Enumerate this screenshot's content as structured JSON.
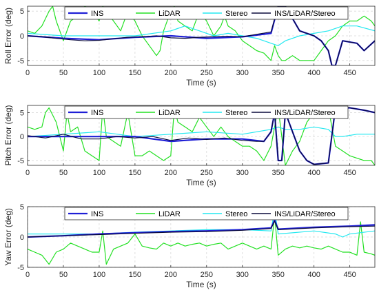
{
  "colors": {
    "INS": "#1f1fd6",
    "LiDAR": "#22e022",
    "Stereo": "#22e8f0",
    "INS/LiDAR/Stereo": "#0a0a3c",
    "grid": "#d9d9d9",
    "axis": "#262626"
  },
  "chart_data": [
    {
      "type": "line",
      "xlabel": "Time (s)",
      "ylabel": "Roll Error (deg)",
      "xlim": [
        0,
        485
      ],
      "ylim": [
        -6,
        6
      ],
      "xticks": [
        0,
        50,
        100,
        150,
        200,
        250,
        300,
        350,
        400,
        450
      ],
      "yticks": [
        -5,
        0,
        5
      ],
      "grid": true,
      "legend": {
        "placement": "top",
        "orientation": "horizontal",
        "entries": [
          "INS",
          "LiDAR",
          "Stereo",
          "INS/LiDAR/Stereo"
        ]
      },
      "series": [
        {
          "name": "INS",
          "x": [
            0,
            50,
            100,
            150,
            200,
            250,
            300,
            340,
            350,
            360,
            380,
            400,
            410,
            420,
            425,
            430,
            440,
            460,
            470,
            485
          ],
          "y": [
            0,
            -0.5,
            -0.8,
            -0.3,
            0,
            -0.5,
            -0.2,
            0.5,
            6,
            6,
            1,
            0,
            -1,
            -3,
            -6,
            -6,
            -1,
            -1.5,
            -3,
            -1
          ]
        },
        {
          "name": "LiDAR",
          "x": [
            0,
            10,
            20,
            30,
            35,
            40,
            50,
            55,
            60,
            70,
            80,
            90,
            100,
            105,
            110,
            120,
            130,
            140,
            150,
            160,
            170,
            180,
            185,
            190,
            200,
            205,
            210,
            220,
            230,
            240,
            250,
            260,
            270,
            275,
            280,
            290,
            300,
            310,
            320,
            330,
            340,
            345,
            350,
            355,
            360,
            370,
            380,
            390,
            400,
            410,
            420,
            430,
            440,
            450,
            460,
            470,
            480,
            485
          ],
          "y": [
            1,
            0.5,
            2,
            5,
            6,
            3,
            -1,
            1,
            3,
            4,
            6,
            5,
            3,
            6,
            5,
            3,
            1,
            5,
            3,
            0,
            -2,
            -4,
            -3,
            1,
            5,
            6,
            3,
            2,
            1,
            5,
            3,
            0,
            2,
            4,
            2,
            1,
            -1,
            -2,
            -3,
            -3.5,
            -5,
            -2,
            -4,
            -5,
            -5,
            -4,
            -5,
            -5,
            -5,
            -3,
            -1,
            0,
            2,
            3,
            3,
            4,
            3,
            2
          ]
        },
        {
          "name": "Stereo",
          "x": [
            0,
            50,
            100,
            150,
            200,
            220,
            240,
            260,
            280,
            300,
            320,
            340,
            350,
            360,
            380,
            400,
            420,
            440,
            460,
            485
          ],
          "y": [
            0.5,
            0,
            0,
            0,
            1,
            2,
            1,
            0,
            0.5,
            0,
            -0.5,
            -1.5,
            -2,
            -1,
            0,
            0.5,
            1,
            2,
            2,
            1
          ]
        },
        {
          "name": "INS/LiDAR/Stereo",
          "x": [
            0,
            20,
            40,
            60,
            80,
            100,
            120,
            140,
            160,
            180,
            200,
            220,
            240,
            260,
            280,
            300,
            320,
            340,
            350,
            360,
            380,
            400,
            410,
            420,
            425,
            430,
            440,
            460,
            470,
            485
          ],
          "y": [
            0,
            -0.2,
            -0.5,
            -0.8,
            -1,
            -0.9,
            -0.6,
            -0.3,
            -0.2,
            0,
            -0.4,
            -0.5,
            -0.3,
            -0.2,
            -0.1,
            -0.2,
            0.3,
            0.8,
            6,
            6,
            1,
            0,
            -1,
            -3,
            -6,
            -6,
            -1,
            -1.5,
            -3,
            -1
          ]
        }
      ]
    },
    {
      "type": "line",
      "xlabel": "Time (s)",
      "ylabel": "Pitch Error (deg)",
      "xlim": [
        0,
        485
      ],
      "ylim": [
        -6,
        6.5
      ],
      "xticks": [
        0,
        50,
        100,
        150,
        200,
        250,
        300,
        350,
        400,
        450
      ],
      "yticks": [
        -5,
        0,
        5
      ],
      "grid": true,
      "legend": {
        "placement": "top",
        "orientation": "horizontal",
        "entries": [
          "INS",
          "LiDAR",
          "Stereo",
          "INS/LiDAR/Stereo"
        ]
      },
      "series": [
        {
          "name": "INS",
          "x": [
            0,
            50,
            100,
            150,
            200,
            250,
            300,
            330,
            340,
            345,
            350,
            355,
            360,
            370,
            380,
            390,
            400,
            420,
            430,
            440,
            450,
            470,
            485
          ],
          "y": [
            0,
            0,
            0,
            0,
            -1,
            -0.5,
            -0.5,
            -1,
            1,
            5,
            -5,
            -5,
            5,
            1,
            -3,
            -5,
            -5.8,
            -5.5,
            6,
            6,
            6,
            5.5,
            5
          ]
        },
        {
          "name": "LiDAR",
          "x": [
            0,
            10,
            20,
            25,
            30,
            40,
            50,
            55,
            60,
            70,
            80,
            90,
            100,
            105,
            110,
            120,
            130,
            140,
            150,
            160,
            170,
            180,
            190,
            200,
            205,
            210,
            220,
            230,
            240,
            250,
            260,
            270,
            280,
            290,
            300,
            310,
            320,
            330,
            340,
            350,
            360,
            370,
            380,
            390,
            400,
            410,
            420,
            430,
            440,
            450,
            460,
            470,
            480,
            485
          ],
          "y": [
            2,
            1.5,
            2,
            5,
            6,
            3,
            -3,
            5,
            1,
            2,
            -3,
            -4,
            -5,
            6,
            0,
            -1,
            -2,
            5,
            -4,
            -4,
            -3,
            -4,
            -5,
            -4,
            6,
            3,
            2,
            1,
            4,
            2,
            0,
            2,
            0,
            -1,
            -2,
            -2,
            -3,
            -5,
            -2,
            6,
            -6,
            -3,
            -1,
            3,
            5,
            6,
            6,
            -2,
            -3,
            -4,
            -4.5,
            -5,
            -5,
            -6
          ]
        },
        {
          "name": "Stereo",
          "x": [
            0,
            50,
            100,
            150,
            200,
            250,
            300,
            320,
            340,
            350,
            360,
            380,
            400,
            420,
            430,
            440,
            460,
            485
          ],
          "y": [
            0,
            0.5,
            1,
            0,
            0.5,
            1,
            0.5,
            1,
            1.5,
            2,
            1.5,
            1.5,
            2,
            1.5,
            0,
            0,
            0.5,
            0.5
          ]
        },
        {
          "name": "INS/LiDAR/Stereo",
          "x": [
            0,
            25,
            50,
            75,
            100,
            125,
            150,
            175,
            200,
            225,
            250,
            275,
            300,
            320,
            330,
            340,
            345,
            350,
            355,
            360,
            370,
            380,
            390,
            400,
            420,
            430,
            440,
            450,
            470,
            485
          ],
          "y": [
            0.2,
            -0.3,
            0.5,
            -0.5,
            -0.5,
            0,
            -0.3,
            0,
            -0.8,
            -0.3,
            -0.6,
            -0.3,
            -0.8,
            -1,
            -1,
            1,
            5,
            -5,
            -5,
            5,
            1,
            -3,
            -5,
            -5.8,
            -5.5,
            6,
            6,
            6,
            5.5,
            5
          ]
        }
      ]
    },
    {
      "type": "line",
      "xlabel": "Time (s)",
      "ylabel": "Yaw Error (deg)",
      "xlim": [
        0,
        485
      ],
      "ylim": [
        -5,
        5
      ],
      "xticks": [
        0,
        50,
        100,
        150,
        200,
        250,
        300,
        350,
        400,
        450
      ],
      "yticks": [
        -5,
        0,
        5
      ],
      "grid": true,
      "legend": {
        "placement": "top",
        "orientation": "horizontal",
        "entries": [
          "INS",
          "LiDAR",
          "Stereo",
          "INS/LiDAR/Stereo"
        ]
      },
      "series": [
        {
          "name": "INS",
          "x": [
            0,
            50,
            100,
            150,
            200,
            250,
            300,
            340,
            345,
            350,
            400,
            450,
            485
          ],
          "y": [
            0,
            0.2,
            0.5,
            0.7,
            0.9,
            1,
            1.2,
            1.5,
            2.8,
            1.3,
            1.6,
            1.8,
            2
          ]
        },
        {
          "name": "LiDAR",
          "x": [
            0,
            10,
            20,
            30,
            40,
            50,
            60,
            70,
            80,
            90,
            100,
            105,
            110,
            120,
            130,
            140,
            150,
            160,
            170,
            180,
            190,
            200,
            210,
            220,
            230,
            240,
            250,
            260,
            270,
            280,
            290,
            300,
            310,
            320,
            330,
            340,
            345,
            350,
            360,
            370,
            380,
            390,
            400,
            410,
            420,
            430,
            440,
            450,
            460,
            465,
            470,
            480,
            485
          ],
          "y": [
            -2,
            -2.5,
            -3,
            -4.5,
            -2.5,
            -2,
            -1,
            -1.5,
            -2,
            -2.5,
            -2.5,
            1,
            -4.5,
            -2,
            -1.5,
            -1,
            0.5,
            -1.5,
            -1.8,
            -2,
            -1,
            -1.5,
            -1,
            -1.5,
            -1.2,
            -1,
            -1.5,
            -1.2,
            -1,
            -2,
            -1.5,
            -1,
            -1.5,
            -2,
            -1.5,
            -2,
            3.5,
            -3,
            -2,
            -1.5,
            -1.8,
            -1.5,
            -1.8,
            -2,
            -1.5,
            -2,
            -2.5,
            -2.5,
            -3,
            2.5,
            -2.5,
            -2.8,
            -3
          ]
        },
        {
          "name": "Stereo",
          "x": [
            0,
            50,
            100,
            150,
            200,
            250,
            300,
            340,
            345,
            350,
            400,
            430,
            440,
            450,
            485
          ],
          "y": [
            0.5,
            0.5,
            0.5,
            0.8,
            1,
            1.2,
            1.2,
            1,
            4.5,
            0.5,
            1,
            0.5,
            0,
            0.5,
            1
          ]
        },
        {
          "name": "INS/LiDAR/Stereo",
          "x": [
            0,
            50,
            100,
            150,
            200,
            250,
            300,
            340,
            345,
            350,
            400,
            450,
            485
          ],
          "y": [
            0,
            0.2,
            0.4,
            0.6,
            0.8,
            0.9,
            1.1,
            1.4,
            2.6,
            1.2,
            1.5,
            1.7,
            1.8
          ]
        }
      ]
    }
  ]
}
